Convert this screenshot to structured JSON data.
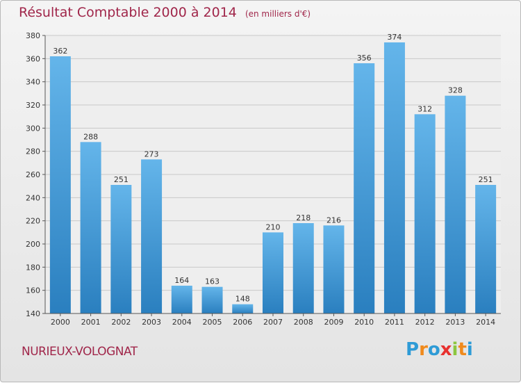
{
  "header": {
    "title": "Résultat Comptable 2000 à 2014",
    "subtitle": "(en milliers d'€)"
  },
  "footer": {
    "place": "NURIEUX-VOLOGNAT",
    "logo_letters": [
      {
        "ch": "P",
        "color": "#2e9bd6"
      },
      {
        "ch": "r",
        "color": "#f08a1c"
      },
      {
        "ch": "o",
        "color": "#2e9bd6"
      },
      {
        "ch": "x",
        "color": "#e8312f"
      },
      {
        "ch": "i",
        "color": "#8cc63f"
      },
      {
        "ch": "t",
        "color": "#f08a1c"
      },
      {
        "ch": "i",
        "color": "#2e9bd6"
      }
    ]
  },
  "colors": {
    "title": "#a0264a",
    "bar_top": "#64b5ea",
    "bar_bottom": "#2a7fbf",
    "grid": "#c8c8c8"
  },
  "chart_data": {
    "type": "bar",
    "categories": [
      "2000",
      "2001",
      "2002",
      "2003",
      "2004",
      "2005",
      "2006",
      "2007",
      "2008",
      "2009",
      "2010",
      "2011",
      "2012",
      "2013",
      "2014"
    ],
    "values": [
      362,
      288,
      251,
      273,
      164,
      163,
      148,
      210,
      218,
      216,
      356,
      374,
      312,
      328,
      251
    ],
    "title": "Résultat Comptable 2000 à 2014",
    "xlabel": "",
    "ylabel": "",
    "ylim": [
      140,
      380
    ],
    "yticks": [
      140,
      160,
      180,
      200,
      220,
      240,
      260,
      280,
      300,
      320,
      340,
      360,
      380
    ],
    "grid": true,
    "legend": "none"
  }
}
